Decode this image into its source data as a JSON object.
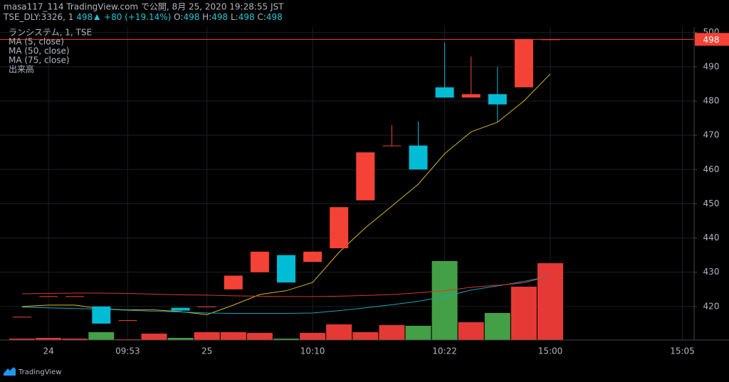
{
  "header": {
    "line1": "masa117_114 TradingView.com で公開, 8月 25, 2020 19:28:55 JST",
    "symbol": "TSE_DLY:3326, 1",
    "last": 498,
    "change": "+80 (+19.14%)",
    "ohlc": [
      {
        "label": "O:",
        "value": 498
      },
      {
        "label": "H:",
        "value": 498
      },
      {
        "label": "L:",
        "value": 498
      },
      {
        "label": "C:",
        "value": 498
      }
    ]
  },
  "chart_data": {
    "type": "candlestick",
    "symbol_label": "ランシステム, 1, TSE",
    "categories": [
      null,
      "24",
      null,
      null,
      "09:53",
      null,
      null,
      "25",
      null,
      null,
      null,
      "10:10",
      null,
      null,
      null,
      null,
      "10:22",
      null,
      null,
      null,
      "15:00",
      null,
      null,
      null,
      null,
      "15:05"
    ],
    "open": [
      417,
      423,
      423,
      420,
      416,
      null,
      419.6,
      420,
      425,
      430,
      435,
      433,
      437,
      451,
      467,
      467,
      484,
      481,
      482,
      484,
      498,
      null,
      null,
      null,
      null,
      null
    ],
    "high": [
      417,
      423,
      423,
      420,
      416,
      null,
      419.6,
      420,
      429,
      436,
      435,
      436,
      449,
      465,
      473,
      474,
      497,
      493,
      490,
      498,
      498,
      null,
      null,
      null,
      null,
      null
    ],
    "low": [
      417,
      423,
      423,
      415,
      416,
      null,
      418.8,
      420,
      425,
      430,
      427,
      433,
      437,
      451,
      467,
      460,
      481,
      481,
      474,
      484,
      498,
      null,
      null,
      null,
      null,
      null
    ],
    "close": [
      417,
      423,
      423,
      415,
      416,
      null,
      418.8,
      420,
      429,
      436,
      427,
      436,
      449,
      465,
      467,
      460,
      481,
      482,
      479,
      498,
      498,
      null,
      null,
      null,
      null,
      null
    ],
    "up_color": "#f44336",
    "down_color": "#00bcd4",
    "volume": {
      "name": "出来高",
      "values": [
        2,
        3,
        2,
        11,
        1,
        9,
        3,
        11,
        11,
        10,
        2,
        10,
        22,
        11,
        21,
        20,
        111,
        25,
        38,
        75,
        108,
        null,
        null,
        null,
        null,
        null
      ],
      "up_color": "#e53935",
      "down_color": "#43a047"
    },
    "vlim": [
      0,
      440
    ],
    "series": [
      {
        "name": "MA (5, close)",
        "color": "#d4b622",
        "values": [
          420,
          420.4,
          420.4,
          419.3,
          419,
          419,
          418.5,
          417.6,
          420.4,
          423.5,
          424.6,
          427,
          435.8,
          443,
          449.3,
          455.7,
          464.6,
          471,
          473.8,
          480,
          487.9,
          null,
          null,
          null,
          null,
          null
        ]
      },
      {
        "name": "MA (50, close)",
        "color": "#1fa3b8",
        "values": [
          419.8,
          419.6,
          419.4,
          419.2,
          418.9,
          418.6,
          418.4,
          418.1,
          418,
          418,
          418,
          418.1,
          418.8,
          419.6,
          420.5,
          421.5,
          422.9,
          424.8,
          426,
          427.3,
          428.9,
          null,
          null,
          null,
          null,
          null
        ]
      },
      {
        "name": "MA (75, close)",
        "color": "#d1392f",
        "values": [
          423.7,
          423.8,
          423.9,
          423.9,
          423.8,
          423.6,
          423.4,
          423.3,
          423.1,
          423,
          422.9,
          422.9,
          423,
          423.2,
          423.5,
          424,
          424.6,
          425.6,
          426.2,
          426.9,
          428.9,
          null,
          null,
          null,
          null,
          null
        ]
      }
    ],
    "last_price": 498,
    "last_price_color": "#f44336",
    "ylim": [
      410.2,
      501.6
    ],
    "yticks": [
      420,
      430,
      440,
      450,
      460,
      470,
      480,
      490,
      500
    ],
    "grid": true
  },
  "footer": {
    "brand": "TradingView"
  }
}
